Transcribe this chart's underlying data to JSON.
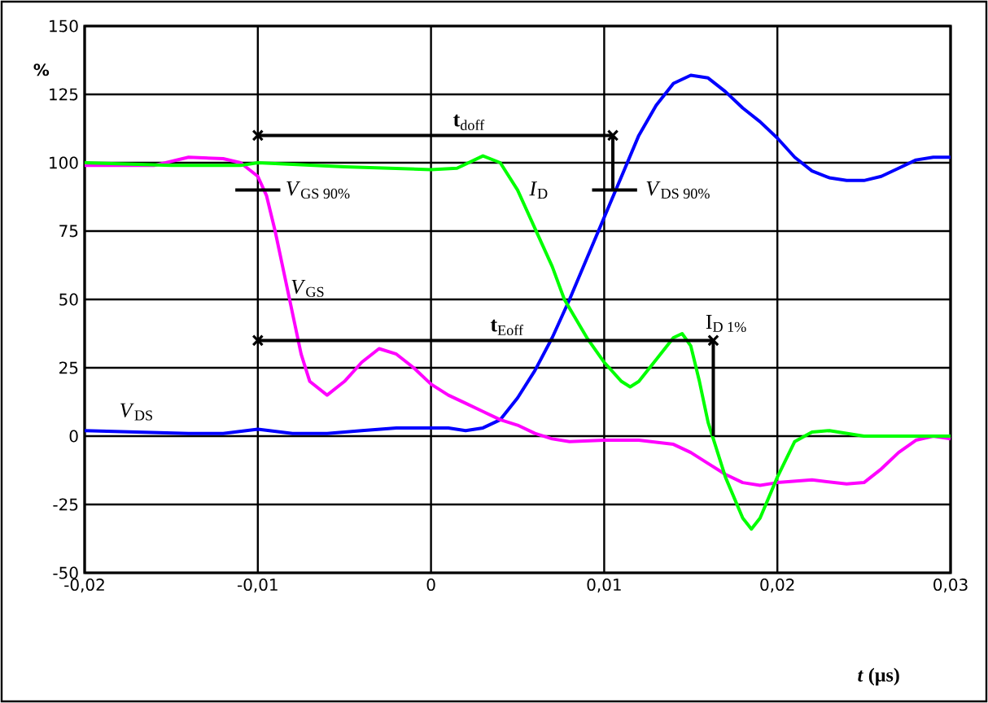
{
  "chart_data": {
    "type": "line",
    "xlabel": "*t* (µs)",
    "ylabel": "%",
    "xlim": [
      -0.02,
      0.03
    ],
    "ylim": [
      -50,
      150
    ],
    "xticks": [
      {
        "value": -0.02,
        "label": "-0,02"
      },
      {
        "value": -0.01,
        "label": "-0,01"
      },
      {
        "value": 0,
        "label": "0"
      },
      {
        "value": 0.01,
        "label": "0,01"
      },
      {
        "value": 0.02,
        "label": "0,02"
      },
      {
        "value": 0.03,
        "label": "0,03"
      }
    ],
    "yticks": [
      -50,
      -25,
      0,
      25,
      50,
      75,
      100,
      125,
      150
    ],
    "grid": true,
    "marker": "none",
    "series": [
      {
        "color": "#0000ff",
        "x": [
          -0.02,
          -0.017,
          -0.014,
          -0.012,
          -0.01,
          -0.008,
          -0.006,
          -0.004,
          -0.002,
          0,
          0.001,
          0.002,
          0.003,
          0.004,
          0.005,
          0.006,
          0.007,
          0.008,
          0.009,
          0.01,
          0.011,
          0.012,
          0.013,
          0.014,
          0.015,
          0.016,
          0.017,
          0.018,
          0.019,
          0.02,
          0.021,
          0.022,
          0.023,
          0.024,
          0.025,
          0.026,
          0.027,
          0.028,
          0.029,
          0.03
        ],
        "values": [
          2,
          1.5,
          1,
          1,
          2.5,
          1,
          1,
          2,
          3,
          3,
          3,
          2,
          3,
          6,
          14,
          24,
          36,
          50,
          65,
          80,
          95,
          110,
          121,
          129,
          132,
          131,
          126,
          120,
          115,
          109,
          102,
          97,
          94.5,
          93.5,
          93.5,
          95,
          98,
          101,
          102,
          102
        ]
      },
      {
        "color": "#ff00ff",
        "x": [
          -0.02,
          -0.016,
          -0.014,
          -0.012,
          -0.011,
          -0.01,
          -0.0095,
          -0.009,
          -0.0085,
          -0.008,
          -0.0075,
          -0.007,
          -0.006,
          -0.005,
          -0.004,
          -0.003,
          -0.002,
          -0.001,
          0,
          0.001,
          0.002,
          0.003,
          0.004,
          0.005,
          0.006,
          0.007,
          0.008,
          0.01,
          0.012,
          0.014,
          0.015,
          0.016,
          0.017,
          0.018,
          0.019,
          0.02,
          0.022,
          0.024,
          0.025,
          0.026,
          0.027,
          0.028,
          0.029,
          0.03
        ],
        "values": [
          99,
          99,
          102,
          101.5,
          100,
          95,
          88,
          75,
          60,
          45,
          30,
          20,
          15,
          20,
          27,
          32,
          30,
          25,
          19,
          15,
          12,
          9,
          6,
          4,
          1,
          -1,
          -2,
          -1.5,
          -1.5,
          -3,
          -6,
          -10,
          -14,
          -17,
          -18,
          -17,
          -16,
          -17.5,
          -17,
          -12,
          -6,
          -1.5,
          0,
          -1
        ]
      },
      {
        "color": "#00ff00",
        "x": [
          -0.02,
          -0.015,
          -0.011,
          -0.01,
          -0.005,
          0,
          0.0015,
          0.003,
          0.004,
          0.005,
          0.006,
          0.007,
          0.0077,
          0.009,
          0.01,
          0.011,
          0.0115,
          0.012,
          0.013,
          0.014,
          0.0145,
          0.015,
          0.0155,
          0.016,
          0.017,
          0.018,
          0.0185,
          0.019,
          0.02,
          0.021,
          0.022,
          0.023,
          0.025,
          0.03
        ],
        "values": [
          100,
          99,
          99,
          100,
          98.5,
          97.5,
          98,
          102.5,
          100,
          90,
          76,
          62,
          50,
          36,
          27,
          20,
          18,
          20,
          28,
          36,
          37.5,
          33,
          20,
          5,
          -15,
          -30,
          -34,
          -30,
          -15,
          -2,
          1.5,
          2,
          0,
          0
        ]
      },
      {
        "color": "#000000",
        "marker": "cross",
        "x": [
          -0.01,
          0.0105
        ],
        "values": [
          110,
          110
        ]
      },
      {
        "color": "#000000",
        "x": [
          0.0105,
          0.0105
        ],
        "values": [
          110,
          90
        ]
      },
      {
        "color": "#000000",
        "marker": "cross",
        "x": [
          -0.01,
          0.0163
        ],
        "values": [
          35,
          35
        ]
      },
      {
        "color": "#000000",
        "x": [
          0.0163,
          0.0163
        ],
        "values": [
          35,
          0
        ]
      },
      {
        "color": "#000000",
        "x": [
          -0.0113,
          -0.0087
        ],
        "values": [
          90,
          90
        ]
      },
      {
        "color": "#000000",
        "x": [
          0.0093,
          0.0119
        ],
        "values": [
          90,
          90
        ]
      }
    ],
    "annotations": [
      {
        "text": "**t**$_{doff}$",
        "x": 0.0022,
        "y": 110
      },
      {
        "text": "**t**$_{Eoff}$",
        "x": 0.0044,
        "y": 35
      },
      {
        "text": "*V*$_{GS 90%}$",
        "x": -0.0087,
        "y": 90
      },
      {
        "text": "*V*$_{DS 90%}$",
        "x": 0.0119,
        "y": 90
      },
      {
        "text": "I$_{D 1%}$",
        "x": 0.0163,
        "y": 35
      },
      {
        "text": "*V*$_{GS}$",
        "x": -0.0085,
        "y": 60
      },
      {
        "text": "*V*$_{DS}$",
        "x": -0.017,
        "y": 1.5
      },
      {
        "text": "*I*$_{D}$",
        "x": 0.005,
        "y": 90
      }
    ]
  }
}
